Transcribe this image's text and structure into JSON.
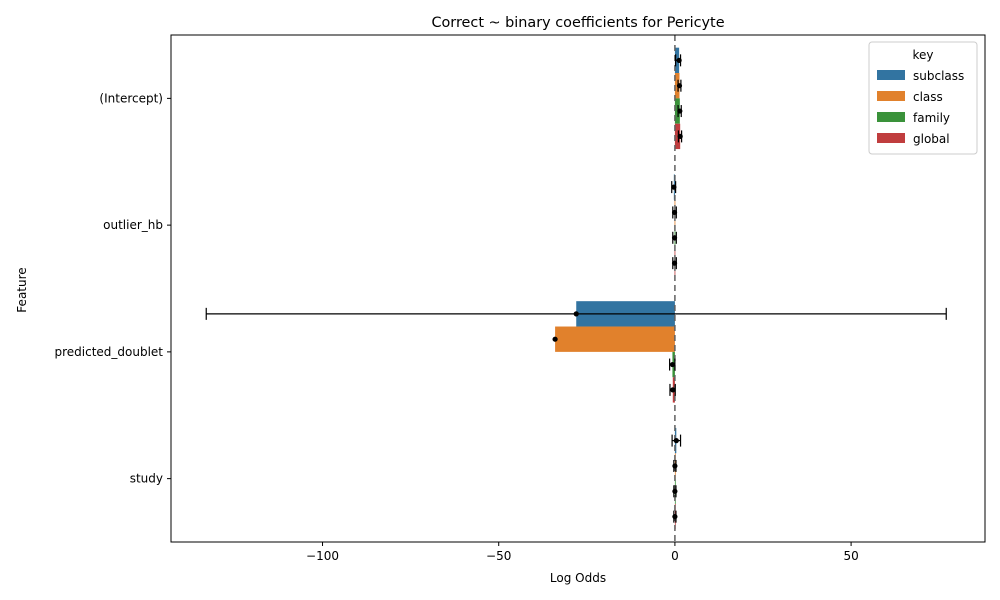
{
  "chart_data": {
    "type": "bar",
    "orientation": "horizontal",
    "title": "Correct ~ binary coefficients for Pericyte",
    "xlabel": "Log Odds",
    "ylabel": "Feature",
    "xlim": [
      -143,
      88
    ],
    "xticks": [
      -100,
      -50,
      0,
      50
    ],
    "xtick_labels": [
      "−100",
      "−50",
      "0",
      "50"
    ],
    "reference_line": 0,
    "categories": [
      "(Intercept)",
      "outlier_hb",
      "predicted_doublet",
      "study"
    ],
    "legend": {
      "title": "key",
      "position": "top-right"
    },
    "series": [
      {
        "name": "subclass",
        "color": "#3274a1",
        "values": [
          1.2,
          -0.3,
          -28.0,
          0.4
        ],
        "ci_low": [
          0.2,
          -0.9,
          -133.0,
          -0.8
        ],
        "ci_high": [
          1.6,
          0.2,
          77.0,
          1.6
        ]
      },
      {
        "name": "class",
        "color": "#e1812c",
        "values": [
          1.3,
          -0.1,
          -34.0,
          0.0
        ],
        "ci_low": [
          0.9,
          -0.6,
          -34.0,
          -0.3
        ],
        "ci_high": [
          1.7,
          0.4,
          -34.0,
          0.3
        ]
      },
      {
        "name": "family",
        "color": "#3a923a",
        "values": [
          1.4,
          -0.1,
          -0.7,
          0.0
        ],
        "ci_low": [
          0.9,
          -0.6,
          -1.5,
          -0.3
        ],
        "ci_high": [
          1.8,
          0.4,
          0.0,
          0.3
        ]
      },
      {
        "name": "global",
        "color": "#c03d3e",
        "values": [
          1.5,
          -0.1,
          -0.6,
          0.0
        ],
        "ci_low": [
          1.0,
          -0.6,
          -1.4,
          -0.3
        ],
        "ci_high": [
          1.9,
          0.4,
          0.1,
          0.3
        ]
      }
    ]
  }
}
